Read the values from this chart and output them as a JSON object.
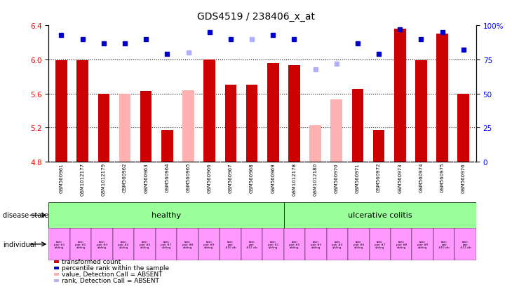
{
  "title": "GDS4519 / 238406_x_at",
  "samples": [
    "GSM560961",
    "GSM1012177",
    "GSM1012179",
    "GSM560962",
    "GSM560963",
    "GSM560964",
    "GSM560965",
    "GSM560966",
    "GSM560967",
    "GSM560968",
    "GSM560969",
    "GSM1012178",
    "GSM1012180",
    "GSM560970",
    "GSM560971",
    "GSM560972",
    "GSM560973",
    "GSM560974",
    "GSM560975",
    "GSM560976"
  ],
  "bar_values": [
    5.99,
    5.99,
    5.6,
    5.6,
    5.63,
    5.17,
    5.64,
    6.0,
    5.7,
    5.7,
    5.96,
    5.93,
    5.23,
    5.53,
    5.65,
    5.17,
    6.36,
    5.99,
    6.3,
    5.6
  ],
  "bar_absent": [
    false,
    false,
    false,
    true,
    false,
    false,
    true,
    false,
    false,
    false,
    false,
    false,
    true,
    true,
    false,
    false,
    false,
    false,
    false,
    false
  ],
  "rank_values": [
    93,
    90,
    87,
    87,
    90,
    79,
    80,
    95,
    90,
    90,
    93,
    90,
    68,
    72,
    87,
    79,
    97,
    90,
    95,
    82
  ],
  "rank_absent": [
    false,
    false,
    false,
    false,
    false,
    false,
    true,
    false,
    false,
    true,
    false,
    false,
    true,
    true,
    false,
    false,
    false,
    false,
    false,
    false
  ],
  "ylim_left": [
    4.8,
    6.4
  ],
  "ylim_right": [
    0,
    100
  ],
  "yticks_left": [
    4.8,
    5.2,
    5.6,
    6.0,
    6.4
  ],
  "yticks_right": [
    0,
    25,
    50,
    75,
    100
  ],
  "ytick_labels_right": [
    "0",
    "25",
    "50",
    "75",
    "100%"
  ],
  "bar_color": "#cc0000",
  "bar_absent_color": "#ffb0b0",
  "rank_color": "#0000cc",
  "rank_absent_color": "#b0b0ff",
  "healthy_n": 11,
  "colitis_n": 9,
  "healthy_color": "#99ff99",
  "colitis_color": "#99ff99",
  "disease_healthy_label": "healthy",
  "disease_colitis_label": "ulcerative colitis",
  "individual_labels": [
    "twin\npair #1\nsibling",
    "twin\npair #2\nsibling",
    "twin\npair #3\nsibling",
    "twin\npair #4\nsibling",
    "twin\npair #6\nsibling",
    "twin\npair #7\nsibling",
    "twin\npair #8\nsibling",
    "twin\npair #9\nsibling",
    "twin\npair\n#10 sib",
    "twin\npair\n#12 sib",
    "twin\npair #1\nsibling",
    "twin\npair #2\nsibling",
    "twin\npair #3\nsibling",
    "twin\npair #4\nsibling",
    "twin\npair #6\nsibling",
    "twin\npair #7\nsibling",
    "twin\npair #8\nsibling",
    "twin\npair #9\nsibling",
    "twin\npair\n#10 sib",
    "twin\npair\n#12 sib"
  ],
  "individual_color": "#ff99ff",
  "gray_bg": "#c8c8c8",
  "bar_width": 0.55,
  "legend_items": [
    {
      "color": "#cc0000",
      "label": "transformed count"
    },
    {
      "color": "#0000cc",
      "label": "percentile rank within the sample"
    },
    {
      "color": "#ffb0b0",
      "label": "value, Detection Call = ABSENT"
    },
    {
      "color": "#b0b0ff",
      "label": "rank, Detection Call = ABSENT"
    }
  ]
}
